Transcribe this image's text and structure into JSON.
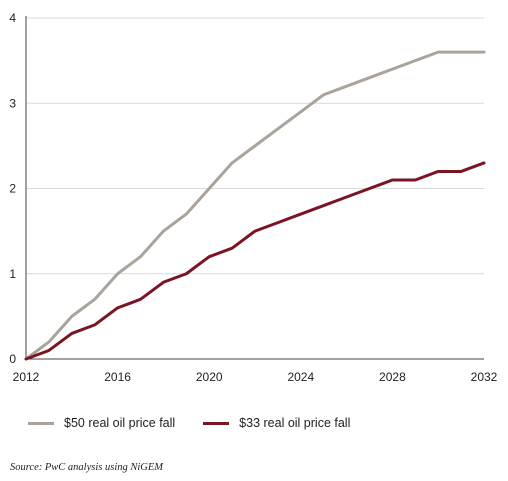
{
  "chart_data": {
    "type": "line",
    "title": "",
    "xlabel": "",
    "ylabel": "",
    "xlim": [
      2012,
      2032
    ],
    "ylim": [
      0,
      4
    ],
    "x_ticks": [
      "2012",
      "2016",
      "2020",
      "2024",
      "2028",
      "2032"
    ],
    "y_ticks": [
      "0",
      "1",
      "2",
      "3",
      "4"
    ],
    "grid": "horizontal",
    "legend_position": "bottom-left",
    "x": [
      2012,
      2013,
      2014,
      2015,
      2016,
      2017,
      2018,
      2019,
      2020,
      2021,
      2022,
      2023,
      2024,
      2025,
      2026,
      2027,
      2028,
      2029,
      2030,
      2031,
      2032
    ],
    "series": [
      {
        "name": "$50 real oil price fall",
        "color": "#aaa39a",
        "values": [
          0,
          0.2,
          0.5,
          0.7,
          1.0,
          1.2,
          1.5,
          1.7,
          2.0,
          2.3,
          2.5,
          2.7,
          2.9,
          3.1,
          3.2,
          3.3,
          3.4,
          3.5,
          3.6,
          3.6,
          3.6
        ]
      },
      {
        "name": "$33 real oil price fall",
        "color": "#7b1423",
        "values": [
          0,
          0.1,
          0.3,
          0.4,
          0.6,
          0.7,
          0.9,
          1.0,
          1.2,
          1.3,
          1.5,
          1.6,
          1.7,
          1.8,
          1.9,
          2.0,
          2.1,
          2.1,
          2.2,
          2.2,
          2.3
        ]
      }
    ]
  },
  "source": "Source: PwC analysis using NiGEM"
}
